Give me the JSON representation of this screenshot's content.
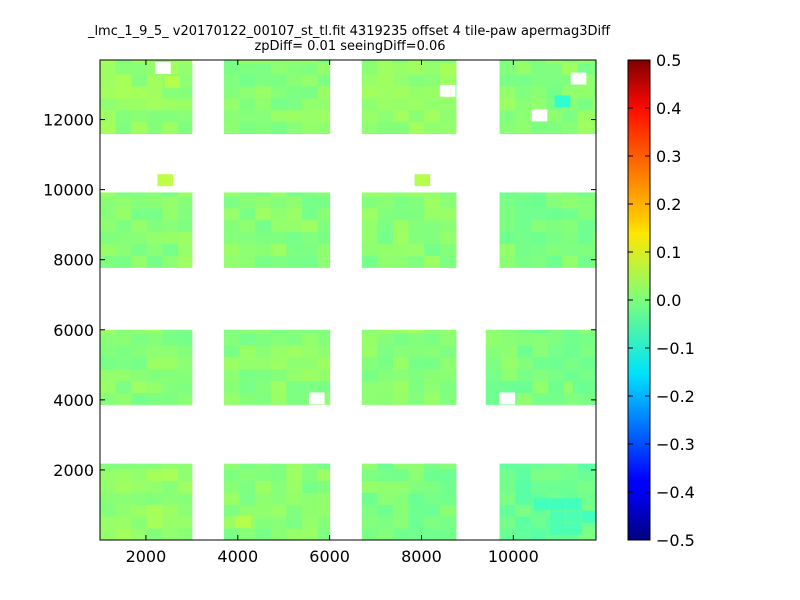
{
  "chart_data": {
    "type": "heatmap",
    "title": "_lmc_1_9_5_ v20170122_00107_st_tl.fit 4319235 offset 4 tile-paw apermag3Diff",
    "subtitle": "zpDiff= 0.01 seeingDiff=0.06",
    "xlabel": "",
    "ylabel": "",
    "xlim": [
      1000,
      11800
    ],
    "ylim": [
      0,
      13700
    ],
    "x_ticks": [
      2000,
      4000,
      6000,
      8000,
      10000
    ],
    "y_ticks": [
      2000,
      4000,
      6000,
      8000,
      10000,
      12000
    ],
    "grid": false,
    "colormap": "jet",
    "colorbar": {
      "min": -0.5,
      "max": 0.5,
      "ticks": [
        "0.5",
        "0.4",
        "0.3",
        "0.2",
        "0.1",
        "0.0",
        "−0.1",
        "−0.2",
        "−0.3",
        "−0.4",
        "−0.5"
      ]
    },
    "cell_size": 340,
    "tiles": [
      {
        "x": [
          1000,
          3000
        ],
        "y": [
          0,
          2180
        ],
        "value": 0.02
      },
      {
        "x": [
          3700,
          6000
        ],
        "y": [
          0,
          2180
        ],
        "value": 0.01
      },
      {
        "x": [
          6700,
          8750
        ],
        "y": [
          0,
          2180
        ],
        "value": 0.0
      },
      {
        "x": [
          9700,
          11800
        ],
        "y": [
          0,
          2180
        ],
        "value": -0.02
      },
      {
        "x": [
          1000,
          3000
        ],
        "y": [
          3870,
          6000
        ],
        "value": 0.01
      },
      {
        "x": [
          3700,
          6000
        ],
        "y": [
          3870,
          6000
        ],
        "value": 0.01
      },
      {
        "x": [
          6700,
          8750
        ],
        "y": [
          3870,
          6000
        ],
        "value": 0.01
      },
      {
        "x": [
          9400,
          11800
        ],
        "y": [
          3870,
          6000
        ],
        "value": 0.0
      },
      {
        "x": [
          1000,
          3000
        ],
        "y": [
          7780,
          9920
        ],
        "value": 0.01
      },
      {
        "x": [
          3700,
          6000
        ],
        "y": [
          7780,
          9920
        ],
        "value": 0.01
      },
      {
        "x": [
          6700,
          8750
        ],
        "y": [
          7780,
          9920
        ],
        "value": 0.01
      },
      {
        "x": [
          9700,
          11800
        ],
        "y": [
          7780,
          9920
        ],
        "value": 0.0
      },
      {
        "x": [
          1000,
          3000
        ],
        "y": [
          11600,
          13700
        ],
        "value": 0.02
      },
      {
        "x": [
          3700,
          6000
        ],
        "y": [
          11600,
          13700
        ],
        "value": 0.01
      },
      {
        "x": [
          6700,
          8750
        ],
        "y": [
          11600,
          13700
        ],
        "value": 0.02
      },
      {
        "x": [
          9700,
          11800
        ],
        "y": [
          11600,
          13700
        ],
        "value": 0.01
      }
    ],
    "special_cells": [
      {
        "x": 10900,
        "y": 12350,
        "value": -0.08
      },
      {
        "x": 10450,
        "y": 850,
        "value": -0.06
      },
      {
        "x": 10800,
        "y": 850,
        "value": -0.06
      },
      {
        "x": 11150,
        "y": 850,
        "value": -0.06
      },
      {
        "x": 10800,
        "y": 500,
        "value": -0.05
      },
      {
        "x": 11150,
        "y": 500,
        "value": -0.05
      },
      {
        "x": 11500,
        "y": 500,
        "value": -0.06
      },
      {
        "x": 10800,
        "y": 150,
        "value": -0.05
      },
      {
        "x": 11150,
        "y": 150,
        "value": -0.05
      },
      {
        "x": 10100,
        "y": 150,
        "value": -0.03
      },
      {
        "x": 2250,
        "y": 10100,
        "value": 0.06
      },
      {
        "x": 7850,
        "y": 10100,
        "value": 0.05
      },
      {
        "x": 3950,
        "y": 350,
        "value": 0.05
      },
      {
        "x": 2400,
        "y": 12900,
        "value": 0.05
      },
      {
        "x": 11300,
        "y": 4200,
        "value": -0.02
      }
    ],
    "holes": [
      {
        "x": 2200,
        "y": 13300
      },
      {
        "x": 8400,
        "y": 12650
      },
      {
        "x": 3000,
        "y": 13650
      },
      {
        "x": 3350,
        "y": 13650
      },
      {
        "x": 5550,
        "y": 3870
      },
      {
        "x": 9700,
        "y": 3870
      },
      {
        "x": 11250,
        "y": 13000
      },
      {
        "x": 10400,
        "y": 11950
      }
    ]
  }
}
